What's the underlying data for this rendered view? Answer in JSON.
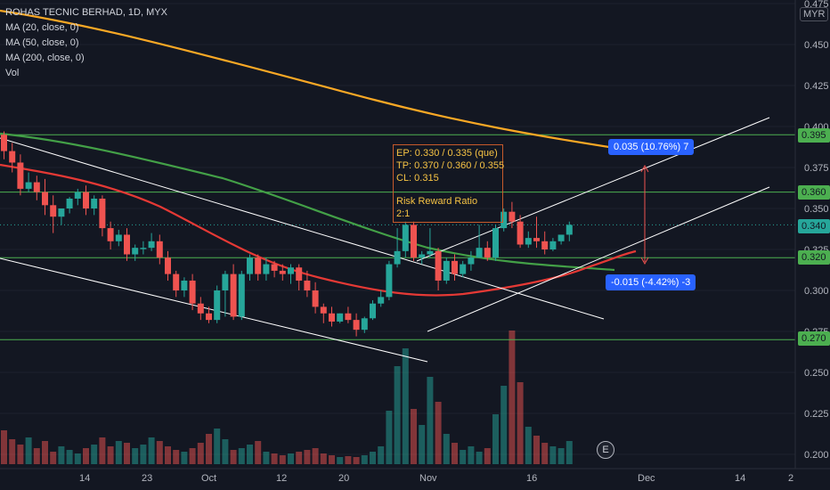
{
  "legend": {
    "title": "ROHAS TECNIC BERHAD, 1D, MYX",
    "ma20": "MA (20, close, 0)",
    "ma50": "MA (50, close, 0)",
    "ma200": "MA (200, close, 0)",
    "vol": "Vol"
  },
  "currency": "MYR",
  "price_axis": {
    "ticks": [
      "0.475",
      "0.450",
      "0.425",
      "0.400",
      "0.375",
      "0.350",
      "0.325",
      "0.300",
      "0.275",
      "0.250",
      "0.225",
      "0.200"
    ],
    "labels": [
      {
        "text": "0.395",
        "kind": "level"
      },
      {
        "text": "0.360",
        "kind": "level"
      },
      {
        "text": "0.340",
        "kind": "current"
      },
      {
        "text": "0.320",
        "kind": "level"
      },
      {
        "text": "0.270",
        "kind": "level"
      }
    ]
  },
  "time_axis": [
    "14",
    "23",
    "Oct",
    "12",
    "20",
    "Nov",
    "16",
    "Dec",
    "14",
    "2"
  ],
  "note": {
    "line1": "EP: 0.330 / 0.335 (que)",
    "line2": "TP: 0.370 / 0.360 / 0.355",
    "line3": "CL: 0.315",
    "line4": "Risk Reward Ratio",
    "line5": "2:1"
  },
  "measure_up": "0.035 (10.76%) 7",
  "measure_down": "-0.015 (-4.42%) -3",
  "earnings_marker": "E",
  "colors": {
    "background": "#131722",
    "up": "#26a69a",
    "down": "#ef5350",
    "ma20": "#e53935",
    "ma50": "#43a047",
    "ma200": "#f9a825",
    "level": "#4caf50",
    "channel": "#ffffff"
  },
  "chart_data": {
    "type": "candlestick",
    "symbol": "ROHAS TECNIC BERHAD",
    "interval": "1D",
    "exchange": "MYX",
    "ylim": [
      0.195,
      0.48
    ],
    "horizontal_levels": [
      0.395,
      0.36,
      0.32,
      0.27
    ],
    "last_price": 0.34,
    "candles": [
      {
        "o": 0.395,
        "h": 0.397,
        "c": 0.385,
        "l": 0.38
      },
      {
        "o": 0.385,
        "h": 0.39,
        "c": 0.378,
        "l": 0.372
      },
      {
        "o": 0.378,
        "h": 0.383,
        "c": 0.362,
        "l": 0.358
      },
      {
        "o": 0.362,
        "h": 0.372,
        "c": 0.366,
        "l": 0.36
      },
      {
        "o": 0.366,
        "h": 0.37,
        "c": 0.36,
        "l": 0.355
      },
      {
        "o": 0.36,
        "h": 0.368,
        "c": 0.352,
        "l": 0.346
      },
      {
        "o": 0.352,
        "h": 0.358,
        "c": 0.345,
        "l": 0.335
      },
      {
        "o": 0.345,
        "h": 0.35,
        "c": 0.35,
        "l": 0.34
      },
      {
        "o": 0.35,
        "h": 0.357,
        "c": 0.356,
        "l": 0.347
      },
      {
        "o": 0.356,
        "h": 0.362,
        "c": 0.36,
        "l": 0.352
      },
      {
        "o": 0.36,
        "h": 0.364,
        "c": 0.35,
        "l": 0.346
      },
      {
        "o": 0.35,
        "h": 0.358,
        "c": 0.356,
        "l": 0.346
      },
      {
        "o": 0.356,
        "h": 0.358,
        "c": 0.338,
        "l": 0.333
      },
      {
        "o": 0.338,
        "h": 0.342,
        "c": 0.33,
        "l": 0.325
      },
      {
        "o": 0.33,
        "h": 0.337,
        "c": 0.334,
        "l": 0.327
      },
      {
        "o": 0.334,
        "h": 0.338,
        "c": 0.322,
        "l": 0.318
      },
      {
        "o": 0.322,
        "h": 0.328,
        "c": 0.326,
        "l": 0.318
      },
      {
        "o": 0.326,
        "h": 0.33,
        "c": 0.326,
        "l": 0.322
      },
      {
        "o": 0.326,
        "h": 0.335,
        "c": 0.33,
        "l": 0.324
      },
      {
        "o": 0.33,
        "h": 0.334,
        "c": 0.32,
        "l": 0.316
      },
      {
        "o": 0.32,
        "h": 0.324,
        "c": 0.31,
        "l": 0.306
      },
      {
        "o": 0.31,
        "h": 0.312,
        "c": 0.3,
        "l": 0.296
      },
      {
        "o": 0.3,
        "h": 0.308,
        "c": 0.306,
        "l": 0.296
      },
      {
        "o": 0.306,
        "h": 0.31,
        "c": 0.292,
        "l": 0.288
      },
      {
        "o": 0.292,
        "h": 0.296,
        "c": 0.286,
        "l": 0.282
      },
      {
        "o": 0.286,
        "h": 0.29,
        "c": 0.282,
        "l": 0.28
      },
      {
        "o": 0.282,
        "h": 0.303,
        "c": 0.3,
        "l": 0.28
      },
      {
        "o": 0.3,
        "h": 0.312,
        "c": 0.31,
        "l": 0.284
      },
      {
        "o": 0.31,
        "h": 0.316,
        "c": 0.284,
        "l": 0.282
      },
      {
        "o": 0.284,
        "h": 0.312,
        "c": 0.31,
        "l": 0.282
      },
      {
        "o": 0.31,
        "h": 0.322,
        "c": 0.32,
        "l": 0.306
      },
      {
        "o": 0.32,
        "h": 0.322,
        "c": 0.31,
        "l": 0.306
      },
      {
        "o": 0.31,
        "h": 0.32,
        "c": 0.316,
        "l": 0.306
      },
      {
        "o": 0.316,
        "h": 0.318,
        "c": 0.312,
        "l": 0.308
      },
      {
        "o": 0.312,
        "h": 0.316,
        "c": 0.31,
        "l": 0.306
      },
      {
        "o": 0.31,
        "h": 0.316,
        "c": 0.314,
        "l": 0.304
      },
      {
        "o": 0.314,
        "h": 0.316,
        "c": 0.306,
        "l": 0.3
      },
      {
        "o": 0.306,
        "h": 0.312,
        "c": 0.3,
        "l": 0.296
      },
      {
        "o": 0.3,
        "h": 0.305,
        "c": 0.29,
        "l": 0.286
      },
      {
        "o": 0.29,
        "h": 0.292,
        "c": 0.286,
        "l": 0.28
      },
      {
        "o": 0.286,
        "h": 0.29,
        "c": 0.281,
        "l": 0.278
      },
      {
        "o": 0.281,
        "h": 0.286,
        "c": 0.286,
        "l": 0.28
      },
      {
        "o": 0.286,
        "h": 0.29,
        "c": 0.282,
        "l": 0.28
      },
      {
        "o": 0.282,
        "h": 0.286,
        "c": 0.276,
        "l": 0.272
      },
      {
        "o": 0.276,
        "h": 0.284,
        "c": 0.283,
        "l": 0.274
      },
      {
        "o": 0.283,
        "h": 0.294,
        "c": 0.292,
        "l": 0.282
      },
      {
        "o": 0.292,
        "h": 0.3,
        "c": 0.296,
        "l": 0.29
      },
      {
        "o": 0.296,
        "h": 0.318,
        "c": 0.316,
        "l": 0.294
      },
      {
        "o": 0.316,
        "h": 0.338,
        "c": 0.324,
        "l": 0.314
      },
      {
        "o": 0.324,
        "h": 0.342,
        "c": 0.34,
        "l": 0.32
      },
      {
        "o": 0.34,
        "h": 0.342,
        "c": 0.32,
        "l": 0.318
      },
      {
        "o": 0.32,
        "h": 0.324,
        "c": 0.322,
        "l": 0.316
      },
      {
        "o": 0.322,
        "h": 0.338,
        "c": 0.324,
        "l": 0.32
      },
      {
        "o": 0.324,
        "h": 0.326,
        "c": 0.306,
        "l": 0.3
      },
      {
        "o": 0.306,
        "h": 0.32,
        "c": 0.318,
        "l": 0.304
      },
      {
        "o": 0.318,
        "h": 0.322,
        "c": 0.31,
        "l": 0.306
      },
      {
        "o": 0.31,
        "h": 0.318,
        "c": 0.316,
        "l": 0.308
      },
      {
        "o": 0.316,
        "h": 0.324,
        "c": 0.32,
        "l": 0.312
      },
      {
        "o": 0.32,
        "h": 0.34,
        "c": 0.326,
        "l": 0.32
      },
      {
        "o": 0.326,
        "h": 0.33,
        "c": 0.32,
        "l": 0.318
      },
      {
        "o": 0.32,
        "h": 0.34,
        "c": 0.338,
        "l": 0.318
      },
      {
        "o": 0.338,
        "h": 0.35,
        "c": 0.348,
        "l": 0.336
      },
      {
        "o": 0.348,
        "h": 0.354,
        "c": 0.342,
        "l": 0.338
      },
      {
        "o": 0.342,
        "h": 0.346,
        "c": 0.328,
        "l": 0.326
      },
      {
        "o": 0.328,
        "h": 0.336,
        "c": 0.332,
        "l": 0.326
      },
      {
        "o": 0.332,
        "h": 0.345,
        "c": 0.33,
        "l": 0.326
      },
      {
        "o": 0.33,
        "h": 0.336,
        "c": 0.325,
        "l": 0.322
      },
      {
        "o": 0.325,
        "h": 0.332,
        "c": 0.33,
        "l": 0.324
      },
      {
        "o": 0.33,
        "h": 0.334,
        "c": 0.334,
        "l": 0.328
      },
      {
        "o": 0.334,
        "h": 0.342,
        "c": 0.34,
        "l": 0.33
      }
    ],
    "volume": [
      38,
      28,
      22,
      30,
      18,
      26,
      14,
      20,
      16,
      12,
      18,
      22,
      30,
      20,
      26,
      24,
      18,
      22,
      30,
      26,
      20,
      16,
      14,
      18,
      24,
      34,
      40,
      28,
      16,
      18,
      22,
      26,
      14,
      12,
      10,
      12,
      14,
      16,
      18,
      12,
      10,
      8,
      9,
      8,
      10,
      14,
      20,
      60,
      110,
      130,
      62,
      44,
      98,
      70,
      34,
      24,
      16,
      20,
      14,
      18,
      56,
      88,
      150,
      92,
      42,
      32,
      24,
      20,
      18,
      26
    ]
  }
}
